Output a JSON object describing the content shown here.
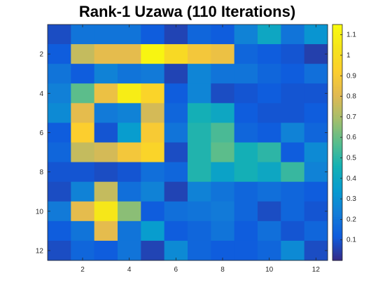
{
  "chart_data": {
    "type": "heatmap",
    "title": "Rank-1 Uzawa (110 Iterations)",
    "xlabel": "",
    "ylabel": "",
    "rows": 12,
    "cols": 12,
    "x_ticks": [
      2,
      4,
      6,
      8,
      10,
      12
    ],
    "y_ticks": [
      2,
      4,
      6,
      8,
      10,
      12
    ],
    "color_limits": [
      0,
      1.15
    ],
    "colormap": "parula",
    "colorbar_ticks": [
      0.1,
      0.2,
      0.3,
      0.4,
      0.5,
      0.6,
      0.7,
      0.8,
      0.9,
      1,
      1.1
    ],
    "values": [
      [
        0.08,
        0.2,
        0.2,
        0.2,
        0.12,
        0.06,
        0.15,
        0.12,
        0.25,
        0.4,
        0.2,
        0.32
      ],
      [
        0.12,
        0.75,
        0.82,
        0.82,
        1.12,
        0.98,
        0.88,
        0.85,
        0.15,
        0.12,
        0.1,
        0.05
      ],
      [
        0.2,
        0.12,
        0.25,
        0.2,
        0.22,
        0.06,
        0.26,
        0.2,
        0.2,
        0.15,
        0.12,
        0.18
      ],
      [
        0.24,
        0.58,
        0.85,
        1.08,
        0.95,
        0.12,
        0.26,
        0.08,
        0.1,
        0.12,
        0.1,
        0.1
      ],
      [
        0.28,
        0.82,
        0.22,
        0.25,
        0.78,
        0.15,
        0.45,
        0.4,
        0.12,
        0.1,
        0.1,
        0.12
      ],
      [
        0.12,
        0.92,
        0.1,
        0.35,
        0.9,
        0.2,
        0.48,
        0.55,
        0.15,
        0.12,
        0.25,
        0.15
      ],
      [
        0.15,
        0.75,
        0.78,
        0.88,
        0.95,
        0.08,
        0.48,
        0.58,
        0.45,
        0.5,
        0.12,
        0.28
      ],
      [
        0.1,
        0.1,
        0.08,
        0.1,
        0.18,
        0.15,
        0.48,
        0.38,
        0.45,
        0.4,
        0.52,
        0.25
      ],
      [
        0.08,
        0.25,
        0.75,
        0.18,
        0.25,
        0.06,
        0.25,
        0.2,
        0.15,
        0.18,
        0.15,
        0.12
      ],
      [
        0.22,
        0.82,
        1.05,
        0.65,
        0.12,
        0.18,
        0.2,
        0.22,
        0.15,
        0.08,
        0.15,
        0.1
      ],
      [
        0.12,
        0.2,
        0.82,
        0.2,
        0.35,
        0.12,
        0.15,
        0.2,
        0.12,
        0.18,
        0.1,
        0.15
      ],
      [
        0.08,
        0.15,
        0.12,
        0.2,
        0.06,
        0.28,
        0.15,
        0.12,
        0.12,
        0.15,
        0.28,
        0.08
      ]
    ]
  }
}
